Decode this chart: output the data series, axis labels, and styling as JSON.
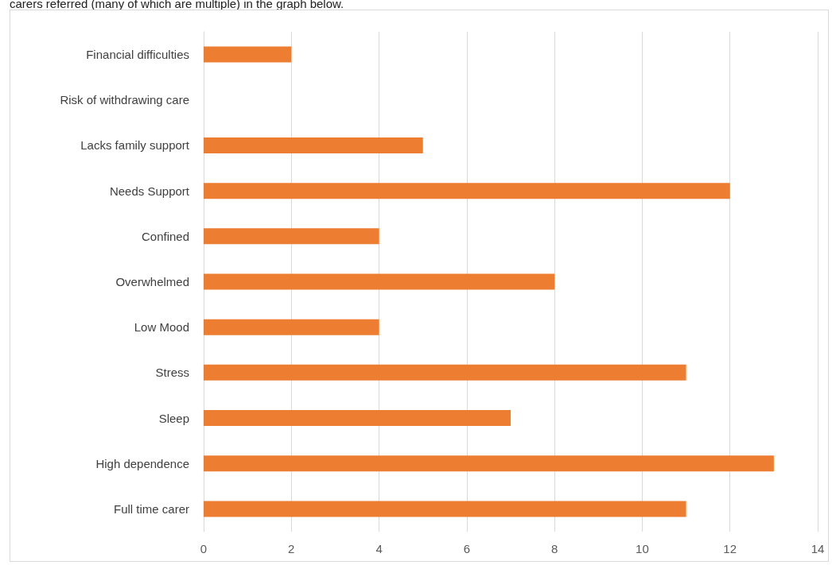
{
  "chart_data": {
    "type": "bar",
    "orientation": "horizontal",
    "annotations": [
      "carers referred (many of which are multiple) in the graph below."
    ],
    "categories": [
      "Financial difficulties",
      "Risk of withdrawing care",
      "Lacks family support",
      "Needs Support",
      "Confined",
      "Overwhelmed",
      "Low Mood",
      "Stress",
      "Sleep",
      "High dependence",
      "Full time carer"
    ],
    "values": [
      2,
      0,
      5,
      12,
      4,
      8,
      4,
      11,
      7,
      13,
      11
    ],
    "color": "#ed7d31",
    "xlim": [
      0,
      14
    ],
    "xticks": [
      0,
      2,
      4,
      6,
      8,
      10,
      12,
      14
    ],
    "grid": "x"
  }
}
